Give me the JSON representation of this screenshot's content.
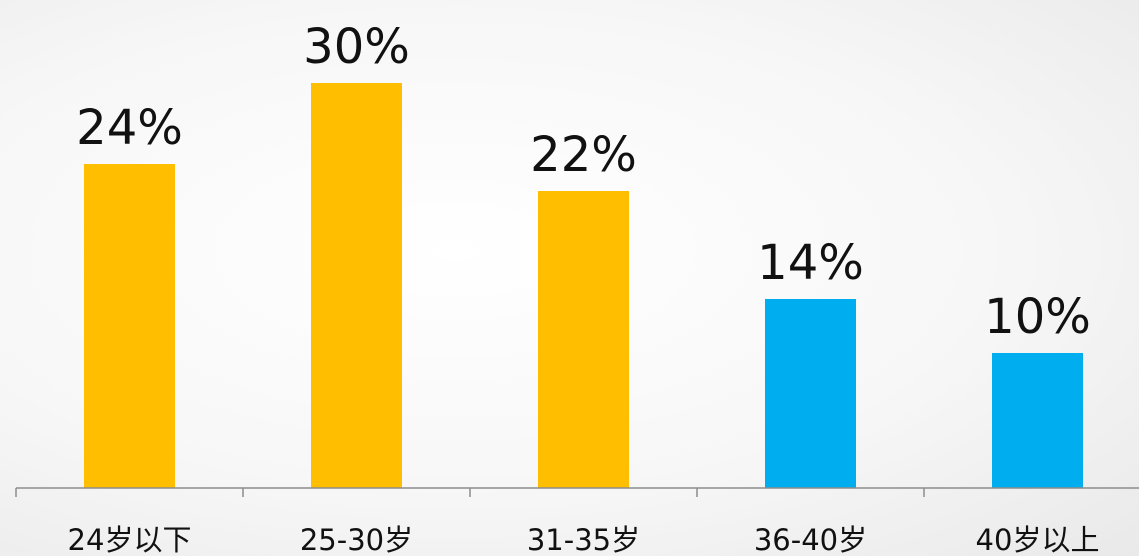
{
  "chart_data": {
    "type": "bar",
    "categories": [
      "24岁以下",
      "25-30岁",
      "31-35岁",
      "36-40岁",
      "40岁以上"
    ],
    "values": [
      24,
      30,
      22,
      14,
      10
    ],
    "labels": [
      "24%",
      "30%",
      "22%",
      "14%",
      "10%"
    ],
    "unit": "%",
    "ylim": [
      0,
      35
    ],
    "grid": false,
    "legend": "none",
    "bar_colors": [
      "#FFBF00",
      "#FFBF00",
      "#FFBF00",
      "#00AEEF",
      "#00AEEF"
    ],
    "axis_color": "#8c8c8c"
  }
}
